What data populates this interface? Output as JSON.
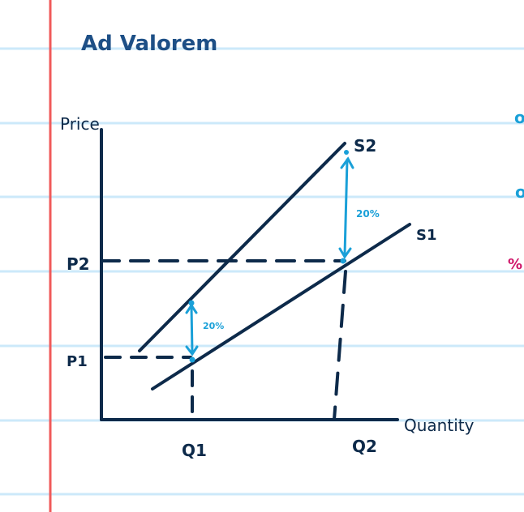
{
  "title": "Ad Valorem",
  "axes": {
    "y_label": "Price",
    "x_label": "Quantity"
  },
  "curves": {
    "s1": "S1",
    "s2": "S2"
  },
  "price_levels": {
    "p1": "P1",
    "p2": "P2"
  },
  "quantity_levels": {
    "q1": "Q1",
    "q2": "Q2"
  },
  "tax_annotations": {
    "left": "20%",
    "right": "20%"
  },
  "margin_fragments": [
    "o",
    "o",
    "%"
  ],
  "colors": {
    "ink": "#0d2a4a",
    "title": "#1d4f86",
    "accent": "#1aa0d8",
    "rule_line": "#cce9fa",
    "margin_line": "#f05a5a",
    "pink": "#d0176a"
  }
}
